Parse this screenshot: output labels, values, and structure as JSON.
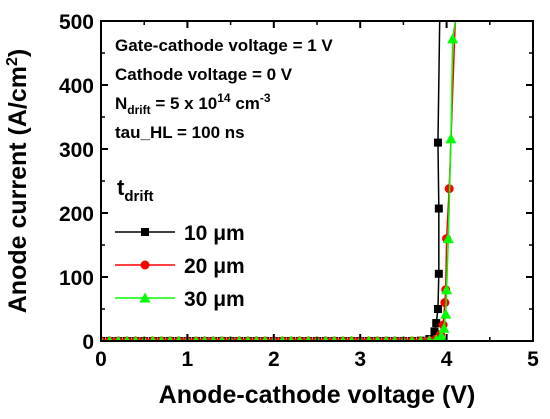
{
  "chart_data": {
    "type": "line",
    "title": "",
    "xlabel": "Anode-cathode voltage (V)",
    "ylabel_main": "Anode current (A/cm",
    "ylabel_sup": "2",
    "ylabel_tail": ")",
    "xlim": [
      0,
      5
    ],
    "ylim": [
      0,
      500
    ],
    "xticks": [
      0,
      1,
      2,
      3,
      4,
      5
    ],
    "yticks": [
      0,
      100,
      200,
      300,
      400,
      500
    ],
    "grid": false,
    "legend": {
      "placement": "center-left",
      "title_main": "t",
      "title_sub": "drift"
    },
    "annotations": [
      {
        "id": "gate",
        "parts": [
          {
            "t": "Gate-cathode voltage = 1 V"
          }
        ]
      },
      {
        "id": "cathode",
        "parts": [
          {
            "t": "Cathode voltage = 0 V"
          }
        ]
      },
      {
        "id": "ndrift",
        "parts": [
          {
            "t": "N"
          },
          {
            "t": "drift",
            "s": "sub"
          },
          {
            "t": " = 5 x 10"
          },
          {
            "t": "14",
            "s": "sup"
          },
          {
            "t": " cm"
          },
          {
            "t": "-3",
            "s": "sup"
          }
        ]
      },
      {
        "id": "tau",
        "parts": [
          {
            "t": "tau_HL = 100 ns"
          }
        ]
      }
    ],
    "series": [
      {
        "name": "10 μm",
        "color": "#000000",
        "marker": "square",
        "points": [
          [
            0,
            0
          ],
          [
            0.1,
            0
          ],
          [
            0.2,
            0
          ],
          [
            0.3,
            0
          ],
          [
            0.4,
            0
          ],
          [
            0.5,
            0
          ],
          [
            0.6,
            0
          ],
          [
            0.7,
            0
          ],
          [
            0.8,
            0
          ],
          [
            0.9,
            0
          ],
          [
            1.0,
            0
          ],
          [
            1.1,
            0
          ],
          [
            1.2,
            0
          ],
          [
            1.3,
            0
          ],
          [
            1.4,
            0
          ],
          [
            1.5,
            0
          ],
          [
            1.6,
            0
          ],
          [
            1.7,
            0
          ],
          [
            1.8,
            0
          ],
          [
            1.9,
            0
          ],
          [
            2.0,
            0
          ],
          [
            2.1,
            0
          ],
          [
            2.2,
            0
          ],
          [
            2.3,
            0
          ],
          [
            2.4,
            0
          ],
          [
            2.5,
            0
          ],
          [
            2.6,
            0
          ],
          [
            2.7,
            0
          ],
          [
            2.8,
            0
          ],
          [
            2.9,
            0
          ],
          [
            3.0,
            0
          ],
          [
            3.1,
            0
          ],
          [
            3.2,
            0
          ],
          [
            3.3,
            0
          ],
          [
            3.4,
            0
          ],
          [
            3.5,
            0
          ],
          [
            3.6,
            0
          ],
          [
            3.7,
            0.5
          ],
          [
            3.8,
            3
          ],
          [
            3.86,
            15
          ],
          [
            3.88,
            28
          ],
          [
            3.9,
            50
          ],
          [
            3.91,
            105
          ],
          [
            3.91,
            207
          ],
          [
            3.9,
            310
          ],
          [
            3.92,
            500
          ]
        ]
      },
      {
        "name": "20 μm",
        "color": "#ff0000",
        "marker": "circle",
        "points": [
          [
            0,
            0
          ],
          [
            0.1,
            0
          ],
          [
            0.2,
            0
          ],
          [
            0.3,
            0
          ],
          [
            0.4,
            0
          ],
          [
            0.5,
            0
          ],
          [
            0.6,
            0
          ],
          [
            0.7,
            0
          ],
          [
            0.8,
            0
          ],
          [
            0.9,
            0
          ],
          [
            1.0,
            0
          ],
          [
            1.1,
            0
          ],
          [
            1.2,
            0
          ],
          [
            1.3,
            0
          ],
          [
            1.4,
            0
          ],
          [
            1.5,
            0
          ],
          [
            1.6,
            0
          ],
          [
            1.7,
            0
          ],
          [
            1.8,
            0
          ],
          [
            1.9,
            0
          ],
          [
            2.0,
            0
          ],
          [
            2.1,
            0
          ],
          [
            2.2,
            0
          ],
          [
            2.3,
            0
          ],
          [
            2.4,
            0
          ],
          [
            2.5,
            0
          ],
          [
            2.6,
            0
          ],
          [
            2.7,
            0
          ],
          [
            2.8,
            0
          ],
          [
            2.9,
            0
          ],
          [
            3.0,
            0
          ],
          [
            3.1,
            0
          ],
          [
            3.2,
            0
          ],
          [
            3.3,
            0
          ],
          [
            3.4,
            0
          ],
          [
            3.5,
            0
          ],
          [
            3.6,
            0
          ],
          [
            3.7,
            0
          ],
          [
            3.8,
            0.5
          ],
          [
            3.88,
            3
          ],
          [
            3.93,
            10
          ],
          [
            3.96,
            25
          ],
          [
            3.98,
            60
          ],
          [
            3.99,
            80
          ],
          [
            4.0,
            160
          ],
          [
            4.03,
            238
          ],
          [
            4.1,
            500
          ]
        ]
      },
      {
        "name": "30 μm",
        "color": "#00ff00",
        "marker": "triangle",
        "points": [
          [
            0,
            0
          ],
          [
            0.1,
            0
          ],
          [
            0.2,
            0
          ],
          [
            0.3,
            0
          ],
          [
            0.4,
            0
          ],
          [
            0.5,
            0
          ],
          [
            0.6,
            0
          ],
          [
            0.7,
            0
          ],
          [
            0.8,
            0
          ],
          [
            0.9,
            0
          ],
          [
            1.0,
            0
          ],
          [
            1.1,
            0
          ],
          [
            1.2,
            0
          ],
          [
            1.3,
            0
          ],
          [
            1.4,
            0
          ],
          [
            1.5,
            0
          ],
          [
            1.6,
            0
          ],
          [
            1.7,
            0
          ],
          [
            1.8,
            0
          ],
          [
            1.9,
            0
          ],
          [
            2.0,
            0
          ],
          [
            2.1,
            0
          ],
          [
            2.2,
            0
          ],
          [
            2.3,
            0
          ],
          [
            2.4,
            0
          ],
          [
            2.5,
            0
          ],
          [
            2.6,
            0
          ],
          [
            2.7,
            0
          ],
          [
            2.8,
            0
          ],
          [
            2.9,
            0
          ],
          [
            3.0,
            0
          ],
          [
            3.1,
            0
          ],
          [
            3.2,
            0
          ],
          [
            3.3,
            0
          ],
          [
            3.4,
            0
          ],
          [
            3.5,
            0
          ],
          [
            3.6,
            0
          ],
          [
            3.7,
            0
          ],
          [
            3.8,
            0.5
          ],
          [
            3.88,
            2
          ],
          [
            3.94,
            8
          ],
          [
            3.97,
            20
          ],
          [
            3.99,
            42
          ],
          [
            4.0,
            80
          ],
          [
            4.02,
            160
          ],
          [
            4.05,
            316
          ],
          [
            4.07,
            472
          ],
          [
            4.1,
            500
          ]
        ]
      }
    ]
  }
}
